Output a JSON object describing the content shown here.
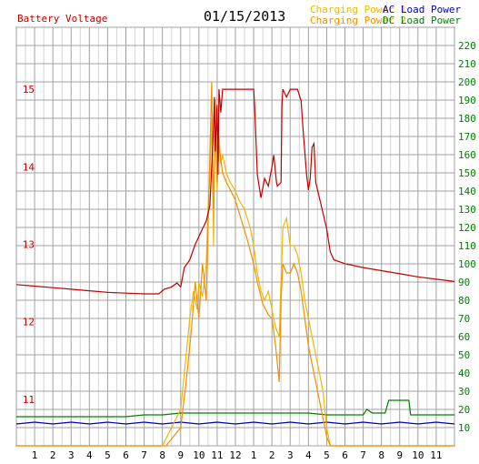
{
  "header": {
    "left_title": "Battery Voltage",
    "date": "01/15/2013",
    "legend": [
      {
        "label": "Charging Power 1",
        "color": "#f0b800"
      },
      {
        "label": "Charging Power 2",
        "color": "#f09000"
      },
      {
        "label": "AC Load Power",
        "color": "#0000c0"
      },
      {
        "label": "DC Load Power",
        "color": "#008000"
      }
    ]
  },
  "chart_data": {
    "type": "line",
    "title": "",
    "x": {
      "range": [
        0,
        24
      ],
      "tick_labels": [
        "1",
        "2",
        "3",
        "4",
        "5",
        "6",
        "7",
        "8",
        "9",
        "10",
        "11",
        "12",
        "1",
        "2",
        "3",
        "4",
        "5",
        "6",
        "7",
        "8",
        "9",
        "10",
        "11"
      ]
    },
    "y_left": {
      "label": "Battery Voltage",
      "range": [
        10.4,
        15.8
      ],
      "ticks": [
        11,
        12,
        13,
        14,
        15
      ],
      "color": "#c00000"
    },
    "y_right": {
      "range": [
        0,
        230
      ],
      "ticks": [
        10,
        20,
        30,
        40,
        50,
        60,
        70,
        80,
        90,
        100,
        110,
        120,
        130,
        140,
        150,
        160,
        170,
        180,
        190,
        200,
        210,
        220
      ],
      "color": "#008000"
    },
    "grid": true,
    "series": [
      {
        "name": "Battery Voltage",
        "axis": "left",
        "color": "#c00000",
        "points": [
          [
            0,
            12.48
          ],
          [
            1,
            12.46
          ],
          [
            2,
            12.44
          ],
          [
            3,
            12.42
          ],
          [
            4,
            12.4
          ],
          [
            5,
            12.38
          ],
          [
            6,
            12.37
          ],
          [
            7,
            12.36
          ],
          [
            7.8,
            12.36
          ],
          [
            8.1,
            12.42
          ],
          [
            8.5,
            12.45
          ],
          [
            8.8,
            12.5
          ],
          [
            9.0,
            12.45
          ],
          [
            9.2,
            12.7
          ],
          [
            9.5,
            12.8
          ],
          [
            9.8,
            13.0
          ],
          [
            10.0,
            13.1
          ],
          [
            10.2,
            13.2
          ],
          [
            10.4,
            13.3
          ],
          [
            10.6,
            13.5
          ],
          [
            10.7,
            14.0
          ],
          [
            10.8,
            14.5
          ],
          [
            10.85,
            14.9
          ],
          [
            10.9,
            14.2
          ],
          [
            11.0,
            14.8
          ],
          [
            11.05,
            13.9
          ],
          [
            11.1,
            15.0
          ],
          [
            11.2,
            14.7
          ],
          [
            11.3,
            15.0
          ],
          [
            11.5,
            15.0
          ],
          [
            12.0,
            15.0
          ],
          [
            12.5,
            15.0
          ],
          [
            13.0,
            15.0
          ],
          [
            13.05,
            14.8
          ],
          [
            13.2,
            13.9
          ],
          [
            13.4,
            13.6
          ],
          [
            13.6,
            13.85
          ],
          [
            13.8,
            13.75
          ],
          [
            14.0,
            14.0
          ],
          [
            14.1,
            14.15
          ],
          [
            14.25,
            13.8
          ],
          [
            14.3,
            13.75
          ],
          [
            14.5,
            13.8
          ],
          [
            14.55,
            14.8
          ],
          [
            14.6,
            15.0
          ],
          [
            14.8,
            14.9
          ],
          [
            15.0,
            15.0
          ],
          [
            15.4,
            15.0
          ],
          [
            15.6,
            14.85
          ],
          [
            15.7,
            14.5
          ],
          [
            15.9,
            13.9
          ],
          [
            16.0,
            13.7
          ],
          [
            16.1,
            13.85
          ],
          [
            16.2,
            14.25
          ],
          [
            16.3,
            14.3
          ],
          [
            16.4,
            13.8
          ],
          [
            16.6,
            13.6
          ],
          [
            16.8,
            13.4
          ],
          [
            17.0,
            13.2
          ],
          [
            17.2,
            12.9
          ],
          [
            17.4,
            12.8
          ],
          [
            18,
            12.75
          ],
          [
            19,
            12.7
          ],
          [
            20,
            12.66
          ],
          [
            21,
            12.62
          ],
          [
            22,
            12.58
          ],
          [
            23,
            12.55
          ],
          [
            24,
            12.52
          ]
        ]
      },
      {
        "name": "Charging Power 1",
        "axis": "right",
        "color": "#f0b800",
        "points": [
          [
            0,
            0
          ],
          [
            8.0,
            0
          ],
          [
            8.5,
            10
          ],
          [
            9.0,
            20
          ],
          [
            9.2,
            40
          ],
          [
            9.5,
            70
          ],
          [
            9.7,
            85
          ],
          [
            9.9,
            75
          ],
          [
            10.0,
            90
          ],
          [
            10.2,
            82
          ],
          [
            10.4,
            100
          ],
          [
            10.5,
            130
          ],
          [
            10.6,
            150
          ],
          [
            10.7,
            180
          ],
          [
            10.8,
            110
          ],
          [
            10.9,
            190
          ],
          [
            11.0,
            140
          ],
          [
            11.1,
            170
          ],
          [
            11.2,
            155
          ],
          [
            11.3,
            160
          ],
          [
            11.5,
            150
          ],
          [
            11.7,
            145
          ],
          [
            12.0,
            140
          ],
          [
            12.2,
            135
          ],
          [
            12.5,
            130
          ],
          [
            12.8,
            120
          ],
          [
            13.0,
            110
          ],
          [
            13.2,
            95
          ],
          [
            13.4,
            85
          ],
          [
            13.6,
            80
          ],
          [
            13.8,
            85
          ],
          [
            14.0,
            75
          ],
          [
            14.2,
            65
          ],
          [
            14.4,
            60
          ],
          [
            14.5,
            90
          ],
          [
            14.6,
            120
          ],
          [
            14.8,
            125
          ],
          [
            15.0,
            110
          ],
          [
            15.2,
            110
          ],
          [
            15.4,
            105
          ],
          [
            15.6,
            95
          ],
          [
            15.8,
            80
          ],
          [
            16.0,
            70
          ],
          [
            16.2,
            60
          ],
          [
            16.4,
            50
          ],
          [
            16.6,
            40
          ],
          [
            16.8,
            30
          ],
          [
            17.0,
            10
          ],
          [
            17.2,
            0
          ],
          [
            24,
            0
          ]
        ]
      },
      {
        "name": "Charging Power 2",
        "axis": "right",
        "color": "#f09000",
        "points": [
          [
            0,
            0
          ],
          [
            8.2,
            0
          ],
          [
            8.6,
            5
          ],
          [
            9.0,
            10
          ],
          [
            9.3,
            35
          ],
          [
            9.6,
            65
          ],
          [
            9.8,
            90
          ],
          [
            10.0,
            70
          ],
          [
            10.2,
            100
          ],
          [
            10.4,
            80
          ],
          [
            10.5,
            120
          ],
          [
            10.6,
            160
          ],
          [
            10.7,
            200
          ],
          [
            10.8,
            130
          ],
          [
            10.9,
            175
          ],
          [
            11.0,
            145
          ],
          [
            11.1,
            165
          ],
          [
            11.3,
            150
          ],
          [
            11.5,
            145
          ],
          [
            12.0,
            135
          ],
          [
            12.3,
            125
          ],
          [
            12.6,
            115
          ],
          [
            13.0,
            100
          ],
          [
            13.2,
            90
          ],
          [
            13.5,
            78
          ],
          [
            13.8,
            72
          ],
          [
            14.0,
            70
          ],
          [
            14.2,
            55
          ],
          [
            14.4,
            35
          ],
          [
            14.5,
            80
          ],
          [
            14.6,
            100
          ],
          [
            14.8,
            95
          ],
          [
            15.0,
            95
          ],
          [
            15.2,
            100
          ],
          [
            15.4,
            95
          ],
          [
            15.6,
            85
          ],
          [
            15.8,
            70
          ],
          [
            16.0,
            55
          ],
          [
            16.2,
            45
          ],
          [
            16.4,
            35
          ],
          [
            16.6,
            25
          ],
          [
            16.8,
            15
          ],
          [
            17.0,
            5
          ],
          [
            17.2,
            0
          ],
          [
            24,
            0
          ]
        ]
      },
      {
        "name": "AC Load Power",
        "axis": "right",
        "color": "#0000c0",
        "points": [
          [
            0,
            12
          ],
          [
            1,
            13
          ],
          [
            2,
            12
          ],
          [
            3,
            13
          ],
          [
            4,
            12
          ],
          [
            5,
            13
          ],
          [
            6,
            12
          ],
          [
            7,
            13
          ],
          [
            8,
            12
          ],
          [
            9,
            13
          ],
          [
            10,
            12
          ],
          [
            11,
            13
          ],
          [
            12,
            12
          ],
          [
            13,
            13
          ],
          [
            14,
            12
          ],
          [
            15,
            13
          ],
          [
            16,
            12
          ],
          [
            17,
            13
          ],
          [
            18,
            12
          ],
          [
            19,
            13
          ],
          [
            20,
            12
          ],
          [
            21,
            13
          ],
          [
            22,
            12
          ],
          [
            23,
            13
          ],
          [
            24,
            12
          ]
        ]
      },
      {
        "name": "DC Load Power",
        "axis": "right",
        "color": "#008000",
        "points": [
          [
            0,
            16
          ],
          [
            6,
            16
          ],
          [
            7,
            17
          ],
          [
            8,
            17
          ],
          [
            9,
            18
          ],
          [
            10,
            18
          ],
          [
            11,
            18
          ],
          [
            12,
            18
          ],
          [
            13,
            18
          ],
          [
            14,
            18
          ],
          [
            15,
            18
          ],
          [
            16,
            18
          ],
          [
            17,
            17
          ],
          [
            18,
            17
          ],
          [
            19,
            17
          ],
          [
            19.2,
            20
          ],
          [
            19.5,
            18
          ],
          [
            20.2,
            18
          ],
          [
            20.4,
            25
          ],
          [
            21.5,
            25
          ],
          [
            21.6,
            17
          ],
          [
            24,
            17
          ]
        ]
      }
    ]
  }
}
